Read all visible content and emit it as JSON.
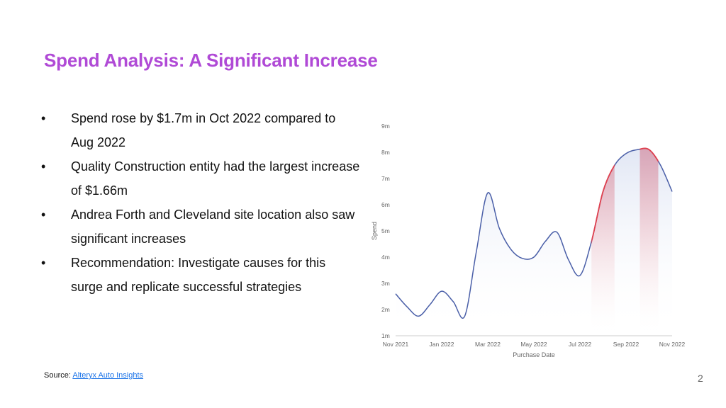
{
  "slide": {
    "title": "Spend Analysis: A Significant Increase",
    "title_color": "#b04ad6",
    "bullets": [
      "Spend rose by $1.7m in Oct 2022 compared to Aug 2022",
      "Quality Construction entity had the largest increase of $1.66m",
      "Andrea Forth and Cleveland site location also saw significant increases",
      "Recommendation: Investigate causes for this surge and replicate successful strategies"
    ],
    "bullet_symbol": "•",
    "source_label": "Source:",
    "source_link_text": "Alteryx Auto Insights",
    "page_number": "2"
  },
  "chart_data": {
    "type": "area",
    "title": "",
    "xlabel": "Purchase Date",
    "ylabel": "Spend",
    "x_tick_labels": [
      "Nov 2021",
      "Jan 2022",
      "Mar 2022",
      "May 2022",
      "Jul 2022",
      "Sep 2022",
      "Nov 2022"
    ],
    "y_tick_labels": [
      "1m",
      "2m",
      "3m",
      "4m",
      "5m",
      "6m",
      "7m",
      "8m",
      "9m"
    ],
    "ylim": [
      1,
      9
    ],
    "xlim": [
      0,
      12
    ],
    "grid": false,
    "line_color": "#4a5fa8",
    "highlight_color": "#e0404e",
    "series": [
      {
        "x": [
          0,
          0.5,
          1,
          1.5,
          2,
          2.5,
          3,
          3.5,
          4,
          4.5,
          5,
          5.5,
          6,
          6.5,
          7,
          7.5,
          8,
          8.5,
          9,
          9.5,
          10,
          10.5,
          11,
          11.5,
          12
        ],
        "values": [
          2.6,
          2.1,
          1.75,
          2.2,
          2.7,
          2.3,
          1.75,
          4.2,
          6.45,
          5.1,
          4.3,
          3.95,
          4.0,
          4.6,
          4.95,
          3.9,
          3.3,
          4.6,
          6.5,
          7.5,
          7.95,
          8.1,
          8.1,
          7.5,
          6.5
        ]
      }
    ],
    "highlight_ranges": [
      [
        8.5,
        9.5
      ],
      [
        10.6,
        11.4
      ]
    ]
  }
}
